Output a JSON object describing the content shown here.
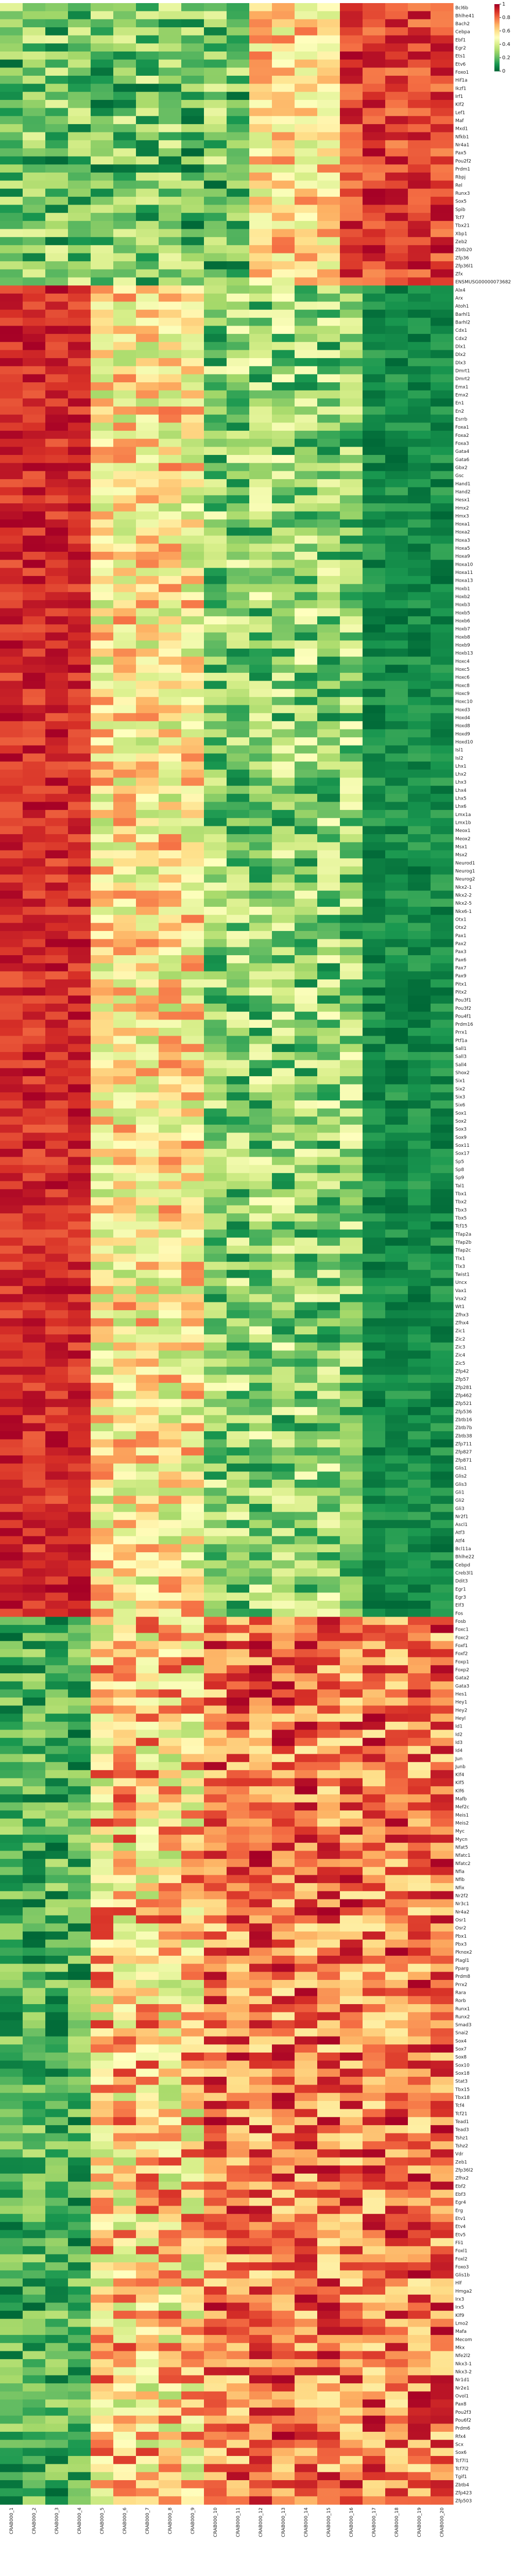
{
  "chart_data": {
    "type": "heatmap",
    "title": "",
    "xlabel": "",
    "ylabel": "",
    "columns": [
      "CRAB000_1",
      "CRAB000_2",
      "CRAB000_3",
      "CRAB000_4",
      "CRAB000_5",
      "CRAB000_6",
      "CRAB000_7",
      "CRAB000_8",
      "CRAB000_9",
      "CRAB000_10",
      "CRAB000_11",
      "CRAB000_12",
      "CRAB000_13",
      "CRAB000_14",
      "CRAB000_15",
      "CRAB000_16",
      "CRAB000_17",
      "CRAB000_18",
      "CRAB000_19",
      "CRAB000_20"
    ],
    "rows": [
      "Bcl6b",
      "Bhlhe41",
      "Bach2",
      "Cebpa",
      "Ebf1",
      "Egr2",
      "Ets1",
      "Etv6",
      "Foxo1",
      "Hif1a",
      "Ikzf1",
      "Irf1",
      "Klf2",
      "Lef1",
      "Maf",
      "Mxd1",
      "Nfkb1",
      "Nr4a1",
      "Pax5",
      "Pou2f2",
      "Prdm1",
      "Rbpj",
      "Rel",
      "Runx3",
      "Sox5",
      "Spib",
      "Tcf7",
      "Tbx21",
      "Xbp1",
      "Zeb2",
      "Zbtb20",
      "Zfp36",
      "Zfp36l1",
      "Zfx",
      "ENSMUSG00000073682",
      "Alx4",
      "Arx",
      "Atoh1",
      "Barhl1",
      "Barhl2",
      "Cdx1",
      "Cdx2",
      "Dlx1",
      "Dlx2",
      "Dlx3",
      "Dmrt1",
      "Dmrt2",
      "Emx1",
      "Emx2",
      "En1",
      "En2",
      "Esrrb",
      "Foxa1",
      "Foxa2",
      "Foxa3",
      "Gata4",
      "Gata6",
      "Gbx2",
      "Gsc",
      "Hand1",
      "Hand2",
      "Hesx1",
      "Hmx2",
      "Hmx3",
      "Hoxa1",
      "Hoxa2",
      "Hoxa3",
      "Hoxa5",
      "Hoxa9",
      "Hoxa10",
      "Hoxa11",
      "Hoxa13",
      "Hoxb1",
      "Hoxb2",
      "Hoxb3",
      "Hoxb5",
      "Hoxb6",
      "Hoxb7",
      "Hoxb8",
      "Hoxb9",
      "Hoxb13",
      "Hoxc4",
      "Hoxc5",
      "Hoxc6",
      "Hoxc8",
      "Hoxc9",
      "Hoxc10",
      "Hoxd3",
      "Hoxd4",
      "Hoxd8",
      "Hoxd9",
      "Hoxd10",
      "Isl1",
      "Isl2",
      "Lhx1",
      "Lhx2",
      "Lhx3",
      "Lhx4",
      "Lhx5",
      "Lhx6",
      "Lmx1a",
      "Lmx1b",
      "Meox1",
      "Meox2",
      "Msx1",
      "Msx2",
      "Neurod1",
      "Neurog1",
      "Neurog2",
      "Nkx2-1",
      "Nkx2-2",
      "Nkx2-5",
      "Nkx6-1",
      "Otx1",
      "Otx2",
      "Pax1",
      "Pax2",
      "Pax3",
      "Pax6",
      "Pax7",
      "Pax9",
      "Pitx1",
      "Pitx2",
      "Pou3f1",
      "Pou3f2",
      "Pou4f1",
      "Prdm16",
      "Prrx1",
      "Ptf1a",
      "Sall1",
      "Sall3",
      "Sall4",
      "Shox2",
      "Six1",
      "Six2",
      "Six3",
      "Six6",
      "Sox1",
      "Sox2",
      "Sox3",
      "Sox9",
      "Sox11",
      "Sox17",
      "Sp5",
      "Sp8",
      "Sp9",
      "Tal1",
      "Tbx1",
      "Tbx2",
      "Tbx3",
      "Tbx5",
      "Tcf15",
      "Tfap2a",
      "Tfap2b",
      "Tfap2c",
      "Tlx1",
      "Tlx3",
      "Twist1",
      "Uncx",
      "Vax1",
      "Vsx2",
      "Wt1",
      "Zfhx3",
      "Zfhx4",
      "Zic1",
      "Zic2",
      "Zic3",
      "Zic4",
      "Zic5",
      "Zfp42",
      "Zfp57",
      "Zfp281",
      "Zfp462",
      "Zfp521",
      "Zfp536",
      "Zbtb16",
      "Zbtb7b",
      "Zbtb38",
      "Zfp711",
      "Zfp827",
      "Zfp871",
      "Glis1",
      "Glis2",
      "Glis3",
      "Gli1",
      "Gli2",
      "Gli3",
      "Nr2f1",
      "Ascl1",
      "Atf3",
      "Atf4",
      "Bcl11a",
      "Bhlhe22",
      "Cebpd",
      "Creb3l1",
      "Ddit3",
      "Egr1",
      "Egr3",
      "Elf3",
      "Fos",
      "Fosb",
      "Foxc1",
      "Foxc2",
      "Foxf1",
      "Foxf2",
      "Foxp1",
      "Foxp2",
      "Gata2",
      "Gata3",
      "Hes1",
      "Hey1",
      "Hey2",
      "Heyl",
      "Id1",
      "Id2",
      "Id3",
      "Id4",
      "Jun",
      "Junb",
      "Klf4",
      "Klf5",
      "Klf6",
      "Mafb",
      "Mef2c",
      "Meis1",
      "Meis2",
      "Myc",
      "Mycn",
      "Nfat5",
      "Nfatc1",
      "Nfatc2",
      "Nfia",
      "Nfib",
      "Nfix",
      "Nr2f2",
      "Nr3c1",
      "Nr4a2",
      "Osr1",
      "Osr2",
      "Pbx1",
      "Pbx3",
      "Pknox2",
      "Plagl1",
      "Pparg",
      "Prdm8",
      "Prrx2",
      "Rara",
      "Rorb",
      "Runx1",
      "Runx2",
      "Smad3",
      "Snai2",
      "Sox4",
      "Sox7",
      "Sox8",
      "Sox10",
      "Sox18",
      "Stat3",
      "Tbx15",
      "Tbx18",
      "Tcf4",
      "Tcf21",
      "Tead1",
      "Tead3",
      "Tshz1",
      "Tshz2",
      "Vdr",
      "Zeb1",
      "Zfp36l2",
      "Zfhx2",
      "Ebf2",
      "Ebf3",
      "Egr4",
      "Erg",
      "Etv1",
      "Etv4",
      "Etv5",
      "Fli1",
      "Foxl1",
      "Foxl2",
      "Foxo3",
      "Glis1b",
      "Hlf",
      "Hmga2",
      "Irx3",
      "Irx5",
      "Klf9",
      "Lmo2",
      "Mafa",
      "Mecom",
      "Mkx",
      "Nfe2l2",
      "Nkx3-1",
      "Nkx3-2",
      "Nr1d1",
      "Nr2e1",
      "Ovol1",
      "Pax8",
      "Pou2f3",
      "Pou6f2",
      "Prdm6",
      "Rfx4",
      "Scx",
      "Sox6",
      "Tcf7l1",
      "Tcf7l2",
      "Tgif1",
      "Zbtb4",
      "Zfp423",
      "Zfp503"
    ],
    "group_boundaries": [
      35,
      200
    ],
    "color_scale": {
      "name": "RdYlGn_r",
      "min": 0,
      "max": 1,
      "ticks": [
        0,
        0.2,
        0.4,
        0.6,
        0.8,
        1.0
      ],
      "colors": [
        "#006837",
        "#1a9850",
        "#66bd63",
        "#a6d96a",
        "#d9ef8b",
        "#ffffbf",
        "#fee08b",
        "#fdae61",
        "#f46d43",
        "#d73027",
        "#a50026"
      ]
    },
    "value_pattern_note": ""
  }
}
